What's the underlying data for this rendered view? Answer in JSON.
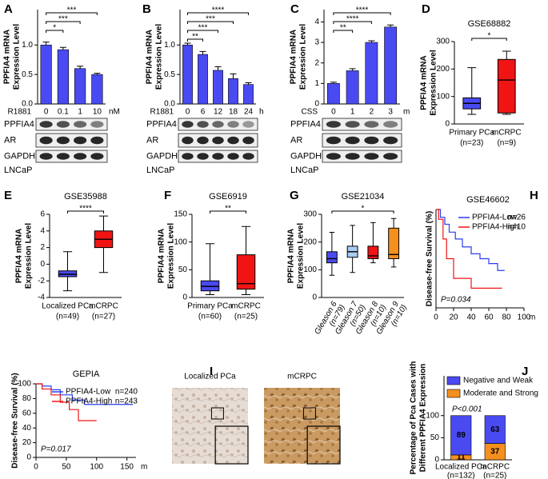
{
  "chart_data": [
    {
      "type": "bar",
      "panel": "A",
      "ylabel": [
        "PPFIA4 mRNA",
        "Expression Level"
      ],
      "xlabel": "R1881",
      "xunit": "nM",
      "categories": [
        "0",
        "0.1",
        "1",
        "10"
      ],
      "values": [
        1.0,
        0.92,
        0.6,
        0.5
      ],
      "errors": [
        0.05,
        0.04,
        0.04,
        0.02
      ],
      "color": "#4a4af2",
      "ylim": [
        0,
        1.6
      ],
      "yticks": [
        {
          "value": 0,
          "label": "0.0"
        },
        0.5,
        {
          "value": 1,
          "label": "1.0"
        }
      ],
      "significance": [
        {
          "text": "*",
          "between": [
            "0",
            "0.1"
          ]
        },
        {
          "text": "***",
          "between": [
            "0",
            "1"
          ]
        },
        {
          "text": "***",
          "between": [
            "0",
            "10"
          ]
        }
      ],
      "blot_labels": [
        "PPFIA4",
        "AR",
        "GAPDH"
      ],
      "cell_line": "LNCaP"
    },
    {
      "type": "bar",
      "panel": "B",
      "ylabel": [
        "PPFIA4 mRNA",
        "Expression Level"
      ],
      "xlabel": "R1881",
      "xunit": "h",
      "categories": [
        "0",
        "6",
        "12",
        "18",
        "24"
      ],
      "values": [
        1.0,
        0.84,
        0.57,
        0.43,
        0.33
      ],
      "errors": [
        0.03,
        0.05,
        0.06,
        0.08,
        0.03
      ],
      "color": "#4a4af2",
      "ylim": [
        0,
        1.6
      ],
      "yticks": [
        {
          "value": 0,
          "label": "0.0"
        },
        0.5,
        {
          "value": 1,
          "label": "1.0"
        }
      ],
      "significance": [
        {
          "text": "**",
          "between": [
            "0",
            "6"
          ]
        },
        {
          "text": "***",
          "between": [
            "0",
            "12"
          ]
        },
        {
          "text": "***",
          "between": [
            "0",
            "18"
          ]
        },
        {
          "text": "****",
          "between": [
            "0",
            "24"
          ]
        }
      ],
      "blot_labels": [
        "PPFIA4",
        "AR",
        "GAPDH"
      ],
      "cell_line": "LNCaP"
    },
    {
      "type": "bar",
      "panel": "C",
      "ylabel": [
        "PPFIA4 mRNA",
        "Expression Level"
      ],
      "xlabel": "CSS",
      "xunit": "m",
      "categories": [
        "0",
        "1",
        "2",
        "3"
      ],
      "values": [
        1.0,
        1.62,
        3.0,
        3.75
      ],
      "errors": [
        0.06,
        0.1,
        0.08,
        0.1
      ],
      "color": "#4a4af2",
      "ylim": [
        0,
        4.6
      ],
      "yticks": [
        0,
        1,
        2,
        3,
        4
      ],
      "significance": [
        {
          "text": "**",
          "between": [
            "0",
            "1"
          ]
        },
        {
          "text": "****",
          "between": [
            "0",
            "2"
          ]
        },
        {
          "text": "****",
          "between": [
            "0",
            "3"
          ]
        }
      ],
      "blot_labels": [
        "PPFIA4",
        "AR",
        "GAPDH"
      ],
      "cell_line": "LNCaP"
    },
    {
      "type": "box",
      "panel": "D",
      "title": "GSE68882",
      "ylabel": [
        "PPFIA4 mRNA",
        "Expression Level"
      ],
      "categories": [
        "Primary PCa",
        "mCRPC"
      ],
      "counts": [
        "(n=23)",
        "(n=9)"
      ],
      "boxes": [
        {
          "min": 35,
          "q1": 55,
          "median": 75,
          "q3": 95,
          "max": 205,
          "color": "#4a4af2"
        },
        {
          "min": 35,
          "q1": 40,
          "median": 160,
          "q3": 235,
          "max": 265,
          "color": "#f01414"
        }
      ],
      "ylim": [
        0,
        300
      ],
      "yticks": [
        0,
        100,
        200,
        300
      ],
      "significance": [
        {
          "text": "*",
          "between": [
            "Primary PCa",
            "mCRPC"
          ]
        }
      ]
    },
    {
      "type": "box",
      "panel": "E",
      "title": "GSE35988",
      "ylabel": [
        "PPFIA4 mRNA",
        "Expression Level"
      ],
      "categories": [
        "Localized PCa",
        "mCRPC"
      ],
      "counts": [
        "(n=49)",
        "(n=27)"
      ],
      "boxes": [
        {
          "min": -3.2,
          "q1": -1.5,
          "median": -1.2,
          "q3": -0.8,
          "max": 1.5,
          "color": "#4a4af2"
        },
        {
          "min": -1,
          "q1": 2,
          "median": 3,
          "q3": 4,
          "max": 5.8,
          "color": "#f01414"
        }
      ],
      "ylim": [
        -4,
        6
      ],
      "yticks": [
        -4,
        -2,
        0,
        2,
        4,
        6
      ],
      "significance": [
        {
          "text": "****",
          "between": [
            "Localized PCa",
            "mCRPC"
          ]
        }
      ]
    },
    {
      "type": "box",
      "panel": "F",
      "title": "GSE6919",
      "ylabel": [
        "PPFIA4 mRNA",
        "Expression Level"
      ],
      "categories": [
        "Primary PCa",
        "mCRPC"
      ],
      "counts": [
        "(n=60)",
        "(n=25)"
      ],
      "boxes": [
        {
          "min": 5,
          "q1": 12,
          "median": 20,
          "q3": 30,
          "max": 97,
          "color": "#4a4af2"
        },
        {
          "min": 5,
          "q1": 15,
          "median": 25,
          "q3": 77,
          "max": 128,
          "color": "#f01414"
        }
      ],
      "ylim": [
        0,
        150
      ],
      "yticks": [
        0,
        50,
        100,
        150
      ],
      "significance": [
        {
          "text": "**",
          "between": [
            "Primary PCa",
            "mCRPC"
          ]
        }
      ]
    },
    {
      "type": "box",
      "panel": "G",
      "title": "GSE21034",
      "ylabel": [
        "PPFIA4 mRNA",
        "Expression Level"
      ],
      "rotated_labels": true,
      "categories": [
        "Gleason 6",
        "Gleason 7",
        "Gleason 8",
        "Gleason 9"
      ],
      "counts": [
        "(n=79)",
        "(n=50)",
        "(n=10)",
        "(n=10)"
      ],
      "boxes": [
        {
          "min": 80,
          "q1": 125,
          "median": 140,
          "q3": 165,
          "max": 235,
          "color": "#4a4af2"
        },
        {
          "min": 90,
          "q1": 145,
          "median": 165,
          "q3": 185,
          "max": 260,
          "color": "#a9cdf2"
        },
        {
          "min": 125,
          "q1": 140,
          "median": 150,
          "q3": 185,
          "max": 270,
          "color": "#f01414"
        },
        {
          "min": 110,
          "q1": 140,
          "median": 155,
          "q3": 250,
          "max": 285,
          "color": "#f5901e"
        }
      ],
      "ylim": [
        0,
        300
      ],
      "yticks": [
        0,
        100,
        200,
        300
      ],
      "significance": [
        {
          "text": "*",
          "between": [
            "Gleason 6",
            "Gleason 9"
          ]
        }
      ]
    },
    {
      "type": "km",
      "panel": "H",
      "title": "GSE46602",
      "ylabel": [
        "Disease-free Survival (%)"
      ],
      "xunit": "m",
      "pvalue": "P=0.034",
      "xlim": [
        0,
        100
      ],
      "xticks": [
        0,
        20,
        40,
        60,
        80,
        100
      ],
      "ylim": [
        0,
        100
      ],
      "series": [
        {
          "name": "PPFIA4-Low",
          "n": "n=26",
          "color": "#2a3cf0",
          "x": [
            0,
            5,
            5,
            10,
            10,
            15,
            15,
            22,
            22,
            30,
            30,
            40,
            40,
            50,
            50,
            60,
            60,
            70,
            70,
            78
          ],
          "values": [
            100,
            100,
            92,
            92,
            85,
            85,
            77,
            77,
            70,
            70,
            62,
            62,
            55,
            55,
            50,
            50,
            45,
            45,
            38,
            38
          ]
        },
        {
          "name": "PPFIA4-High",
          "n": "n=10",
          "color": "#f01414",
          "x": [
            0,
            3,
            3,
            8,
            8,
            12,
            12,
            20,
            20,
            40,
            40,
            75
          ],
          "values": [
            100,
            100,
            90,
            90,
            70,
            70,
            50,
            50,
            30,
            30,
            20,
            20
          ]
        }
      ]
    },
    {
      "type": "km",
      "title": "GEPIA",
      "ylabel": [
        "Disease-free Survival (%)"
      ],
      "xunit": "m",
      "pvalue": "P=0.017",
      "xlim": [
        0,
        165
      ],
      "xticks": [
        0,
        50,
        100,
        150
      ],
      "ylim": [
        0,
        100
      ],
      "yticks": [
        0,
        20,
        40,
        60,
        80,
        100
      ],
      "series": [
        {
          "name": "PPFIA4-Low",
          "n": "n=240",
          "color": "#2a3cf0",
          "x": [
            0,
            10,
            10,
            25,
            25,
            40,
            40,
            60,
            60,
            80,
            80,
            160
          ],
          "values": [
            100,
            100,
            97,
            97,
            92,
            92,
            85,
            85,
            78,
            78,
            72,
            72
          ]
        },
        {
          "name": "PPFIA4-High",
          "n": "n=243",
          "color": "#f01414",
          "x": [
            0,
            10,
            10,
            25,
            25,
            40,
            40,
            55,
            55,
            70,
            70,
            100
          ],
          "values": [
            100,
            100,
            93,
            93,
            85,
            85,
            75,
            75,
            65,
            65,
            50,
            50
          ]
        }
      ]
    },
    {
      "type": "image",
      "panel": "I",
      "titles": [
        "Localized PCa",
        "mCRPC"
      ]
    },
    {
      "type": "stacked_bar",
      "panel": "J",
      "ylabel": [
        "Percentage of Pca Cases with",
        "Different PPFIA4  Expression"
      ],
      "pvalue": "P<0.001",
      "categories": [
        "Localized PCa",
        "mCRPC"
      ],
      "counts": [
        "(n=132)",
        "(n=25)"
      ],
      "series": [
        {
          "name": "Moderate and Strong",
          "color": "#f5901e",
          "values": [
            11,
            37
          ]
        },
        {
          "name": "Negative and Weak",
          "color": "#4a4af2",
          "values": [
            89,
            63
          ]
        }
      ],
      "ylim": [
        0,
        190
      ],
      "yticks": [
        0,
        50,
        100
      ]
    }
  ]
}
